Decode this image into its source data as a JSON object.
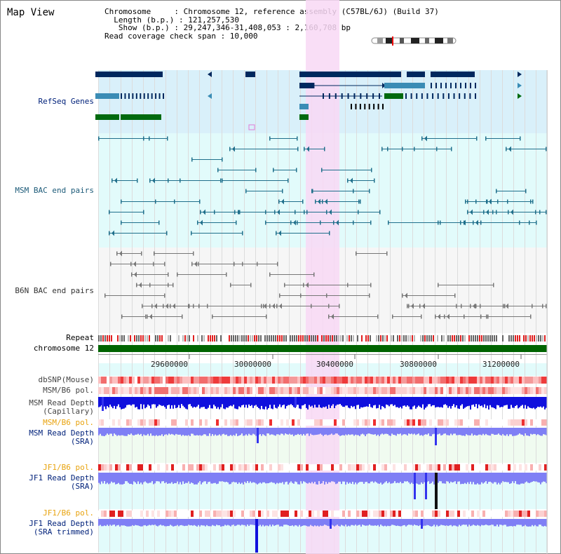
{
  "title": "Map View",
  "info": {
    "chromosome": "Chromosome     : Chromosome 12, reference assembly (C57BL/6J) (Build 37)",
    "length": "  Length (b.p.) : 121,257,530",
    "show": "   Show (b.p.) : 29,247,346-31,408,053 : 2,160,708 bp",
    "coverage": "Read coverage check span : 10,000"
  },
  "tracks": {
    "refseq": "RefSeq Genes",
    "msm_bac": "MSM BAC end pairs",
    "b6n_bac": "B6N BAC end pairs",
    "repeat": "Repeat",
    "chromosome": "chromosome 12",
    "dbsnp": "dbSNP(Mouse)",
    "msm_b6_pol": "MSM/B6 pol.",
    "msm_depth_cap": "MSM Read Depth\n(Capillary)",
    "msm_b6_pol2": "MSM/B6 pol.",
    "msm_depth_sra": "MSM Read Depth\n(SRA)",
    "jf1_b6_pol": "JF1/B6 pol.",
    "jf1_depth_sra": "JF1 Read Depth\n(SRA)",
    "jf1_b6_pol2": "JF1/B6 pol.",
    "jf1_depth_trim": "JF1 Read Depth\n(SRA trimmed)"
  },
  "axis": {
    "ticks": [
      "29600000",
      "30000000",
      "30400000",
      "30800000",
      "31200000"
    ]
  },
  "colors": {
    "refseq_bg": "#d9f0fa",
    "msm_bg": "#e2fbfb",
    "b6n_bg": "#f5f5f5",
    "highlight": "#f8d8f5",
    "gene_dark": "#00285e",
    "gene_mid": "#3a8cb5",
    "gene_green": "#006a0e",
    "chromosome_bar": "#006400",
    "depth_dark": "#0000cc",
    "depth_light": "#7f7ff5",
    "snp_red": "#ee3b3b",
    "label_blue": "#00217a",
    "label_orange": "#e8a30e"
  }
}
